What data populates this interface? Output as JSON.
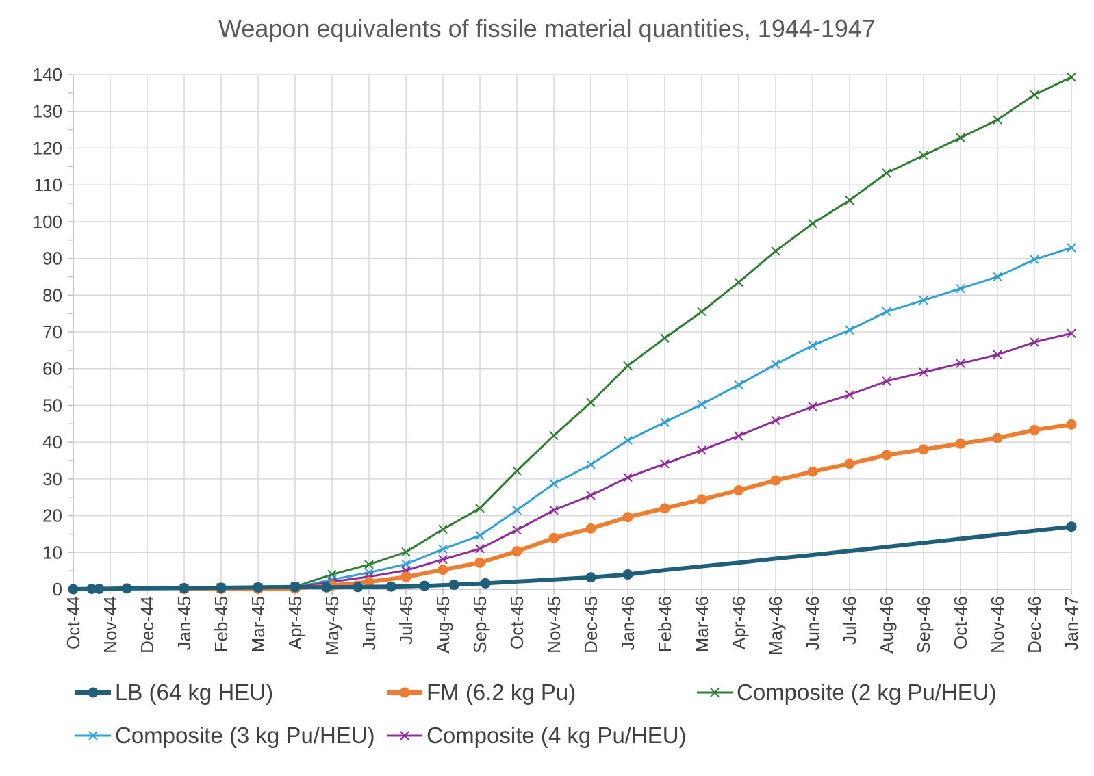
{
  "chart_data": {
    "type": "line",
    "title": "Weapon equivalents of fissile material quantities, 1944-1947",
    "xlabel": "",
    "ylabel": "",
    "ylim": [
      0,
      140
    ],
    "yticks": [
      0,
      10,
      20,
      30,
      40,
      50,
      60,
      70,
      80,
      90,
      100,
      110,
      120,
      130,
      140
    ],
    "categories": [
      "Oct-44",
      "Nov-44",
      "Dec-44",
      "Jan-45",
      "Feb-45",
      "Mar-45",
      "Apr-45",
      "May-45",
      "Jun-45",
      "Jul-45",
      "Aug-45",
      "Sep-45",
      "Oct-45",
      "Nov-45",
      "Dec-45",
      "Jan-46",
      "Feb-46",
      "Mar-46",
      "Apr-46",
      "May-46",
      "Jun-46",
      "Jul-46",
      "Aug-46",
      "Sep-46",
      "Oct-46",
      "Nov-46",
      "Dec-46",
      "Jan-47"
    ],
    "grid": true,
    "legend_position": "bottom",
    "series": [
      {
        "name": "LB (64 kg HEU)",
        "color": "#1f5f7a",
        "marker": "circle",
        "markers_shown": [
          true,
          true,
          true,
          true,
          true,
          true,
          true,
          true,
          true,
          true,
          true,
          true,
          true,
          true,
          true,
          true,
          false,
          false,
          false,
          false,
          false,
          false,
          false,
          false,
          false,
          false,
          false,
          true
        ],
        "x": [
          0,
          0.5,
          0.7,
          1.45,
          3,
          4,
          5,
          6,
          6.85,
          7.7,
          8.6,
          9.5,
          10.3,
          11.15,
          14,
          15,
          16,
          17,
          18,
          19,
          20,
          21,
          22,
          23,
          24,
          25,
          26,
          27
        ],
        "values": [
          0,
          0.1,
          0.1,
          0.2,
          0.3,
          0.4,
          0.5,
          0.6,
          0.5,
          0.6,
          0.7,
          0.9,
          1.2,
          1.6,
          3.2,
          4.0,
          5.2,
          6.2,
          7.2,
          8.3,
          9.3,
          10.4,
          11.5,
          12.6,
          13.7,
          14.8,
          15.9,
          17.0
        ]
      },
      {
        "name": "FM (6.2 kg Pu)",
        "color": "#ed7d31",
        "marker": "circle",
        "markers_shown": [
          true,
          true,
          true,
          true,
          true,
          true,
          true,
          true,
          true,
          true,
          true,
          true,
          true,
          true,
          true,
          true,
          true,
          true,
          true,
          true,
          true,
          true,
          true,
          true,
          true
        ],
        "x": [
          3,
          4,
          5,
          6,
          7,
          8,
          9,
          10,
          11,
          12,
          13,
          14,
          15,
          16,
          17,
          18,
          19,
          20,
          21,
          22,
          23,
          24,
          25,
          26,
          27
        ],
        "values": [
          0.1,
          0.1,
          0.1,
          0.2,
          1.0,
          2.0,
          3.3,
          5.3,
          7.2,
          10.3,
          13.9,
          16.5,
          19.6,
          22.0,
          24.4,
          26.9,
          29.6,
          32.0,
          34.1,
          36.5,
          38.0,
          39.6,
          41.1,
          43.3,
          44.8
        ]
      },
      {
        "name": "Composite (2 kg Pu/HEU)",
        "color": "#2e7d32",
        "marker": "x",
        "markers_shown": [
          true,
          true,
          true,
          true,
          true,
          true,
          true,
          true,
          true,
          true,
          true,
          true,
          true,
          true,
          true,
          true,
          true,
          true,
          true,
          true,
          true,
          true,
          true,
          true,
          true
        ],
        "x": [
          3,
          4,
          5,
          6,
          7,
          8,
          9,
          10,
          11,
          12,
          13,
          14,
          15,
          16,
          17,
          18,
          19,
          20,
          21,
          22,
          23,
          24,
          25,
          26,
          27
        ],
        "values": [
          0.3,
          0.5,
          0.5,
          0.7,
          4.0,
          6.7,
          10.1,
          16.3,
          22.0,
          32.2,
          41.8,
          50.8,
          60.8,
          68.3,
          75.5,
          83.5,
          92.0,
          99.5,
          105.8,
          113.2,
          118.0,
          122.8,
          127.7,
          134.5,
          139.3
        ]
      },
      {
        "name": "Composite (3 kg Pu/HEU)",
        "color": "#2e9fd6",
        "marker": "x",
        "markers_shown": [
          true,
          true,
          true,
          true,
          true,
          true,
          true,
          true,
          true,
          true,
          true,
          true,
          true,
          true,
          true,
          true,
          true,
          true,
          true,
          true,
          true,
          true,
          true,
          true,
          true
        ],
        "x": [
          3,
          4,
          5,
          6,
          7,
          8,
          9,
          10,
          11,
          12,
          13,
          14,
          15,
          16,
          17,
          18,
          19,
          20,
          21,
          22,
          23,
          24,
          25,
          26,
          27
        ],
        "values": [
          0.2,
          0.3,
          0.4,
          0.5,
          2.6,
          4.5,
          6.8,
          10.9,
          14.6,
          21.5,
          28.7,
          33.9,
          40.5,
          45.4,
          50.3,
          55.6,
          61.2,
          66.3,
          70.5,
          75.5,
          78.6,
          81.8,
          85.0,
          89.7,
          92.9
        ]
      },
      {
        "name": "Composite (4 kg Pu/HEU)",
        "color": "#8e2c99",
        "marker": "x",
        "markers_shown": [
          true,
          true,
          true,
          true,
          true,
          true,
          true,
          true,
          true,
          true,
          true,
          true,
          true,
          true,
          true,
          true,
          true,
          true,
          true,
          true,
          true,
          true,
          true,
          true,
          true
        ],
        "x": [
          3,
          4,
          5,
          6,
          7,
          8,
          9,
          10,
          11,
          12,
          13,
          14,
          15,
          16,
          17,
          18,
          19,
          20,
          21,
          22,
          23,
          24,
          25,
          26,
          27
        ],
        "values": [
          0.2,
          0.2,
          0.3,
          0.4,
          2.0,
          3.4,
          5.1,
          8.1,
          11.0,
          16.1,
          21.5,
          25.5,
          30.4,
          34.1,
          37.8,
          41.7,
          45.9,
          49.7,
          52.9,
          56.6,
          59.0,
          61.4,
          63.8,
          67.2,
          69.6
        ]
      }
    ]
  }
}
